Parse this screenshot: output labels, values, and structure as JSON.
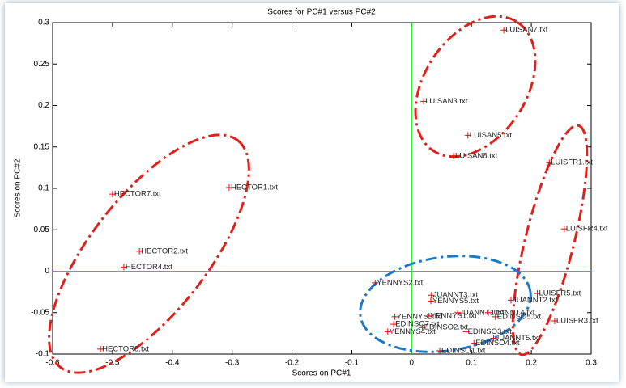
{
  "chart_data": {
    "type": "scatter",
    "title": "Scores for PC#1 versus PC#2",
    "x_label": "Scores on PC#1",
    "y_label": "Scores on PC#2",
    "labels": [
      "HECTOR7.txt",
      "HECTOR1.txt",
      "HECTOR2.txt",
      "HECTOR4.txt",
      "HECTOR8.txt",
      "LUISAN7.txt",
      "LUISAN3.txt",
      "LUISAN5.txt",
      "LUISAN8.txt",
      "LUISFR1.txt",
      "LUISFR4.txt",
      "LUISFR5.txt",
      "LUISFR3.txt",
      "JUANNT2.txt",
      "JUANNT3.txt",
      "YENNYS5.txt",
      "YENNYS2.txt",
      "JUANNT1.txt",
      "JUANNT4.txt",
      "EDINSO5.txt",
      "YENNYS3.txt",
      "YENNYS1.txt",
      "EDINSO7.txt",
      "YENNYS4.txt",
      "EDINSO2.txt",
      "EDINSO3.txt",
      "JUANNT5.txt",
      "EDINSO4.txt",
      "EDINSO1.txt"
    ],
    "x": [
      -0.5,
      -0.305,
      -0.455,
      -0.481,
      -0.52,
      0.154,
      0.02,
      0.094,
      0.07,
      0.23,
      0.255,
      0.21,
      0.239,
      0.166,
      0.033,
      0.032,
      -0.061,
      0.077,
      0.128,
      0.14,
      -0.028,
      0.029,
      -0.03,
      -0.04,
      0.018,
      0.091,
      0.137,
      0.104,
      0.047
    ],
    "values": [
      0.093,
      0.101,
      0.024,
      0.005,
      -0.094,
      0.291,
      0.205,
      0.164,
      0.139,
      0.131,
      0.051,
      -0.027,
      -0.06,
      -0.035,
      -0.029,
      -0.036,
      -0.014,
      -0.05,
      -0.05,
      -0.055,
      -0.055,
      -0.054,
      -0.064,
      -0.073,
      -0.068,
      -0.073,
      -0.081,
      -0.087,
      -0.096
    ],
    "marker_color": "#ff0000",
    "zero_line_color": "#00ee00",
    "xlim": [
      -0.6,
      0.3
    ],
    "xticks": [
      -0.6,
      -0.5,
      -0.4,
      -0.3,
      -0.2,
      -0.1,
      0,
      0.1,
      0.2,
      0.3
    ],
    "ylim": [
      -0.1,
      0.3
    ],
    "yticks": [
      -0.1,
      -0.05,
      0,
      0.05,
      0.1,
      0.15,
      0.2,
      0.25,
      0.3
    ]
  }
}
